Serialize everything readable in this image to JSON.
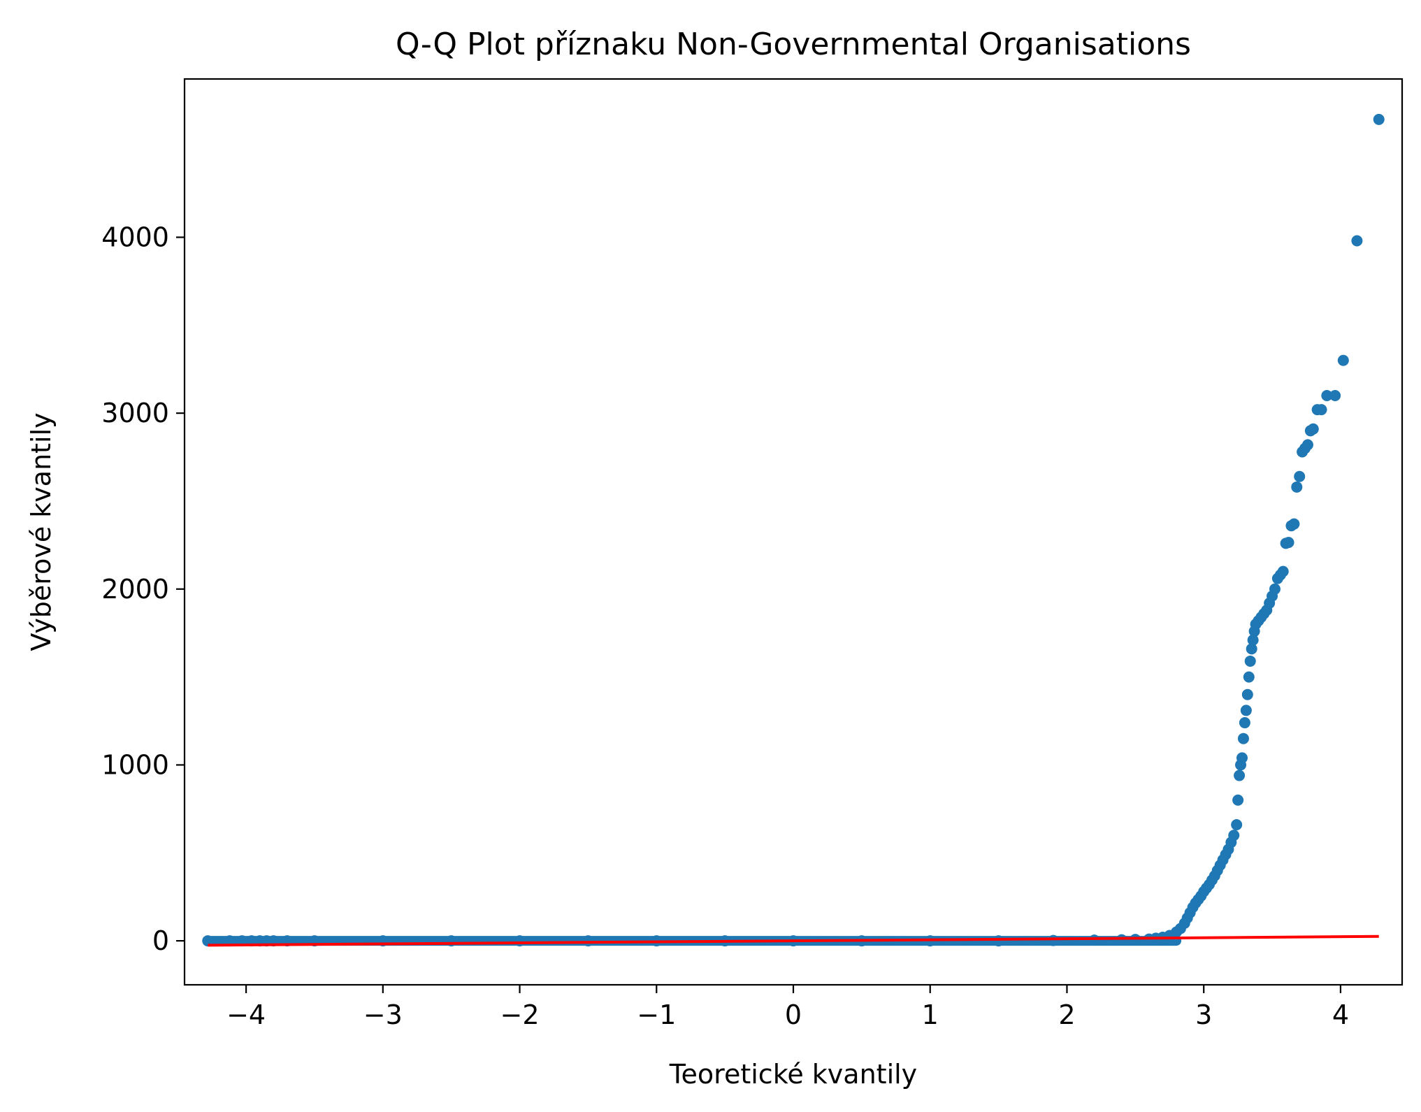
{
  "chart_data": {
    "type": "scatter",
    "title": "Q-Q Plot příznaku Non-Governmental Organisations",
    "xlabel": "Teoretické kvantily",
    "ylabel": "Výběrové kvantily",
    "xlim": [
      -4.45,
      4.45
    ],
    "ylim": [
      -250,
      4900
    ],
    "x_ticks": [
      -4,
      -3,
      -2,
      -1,
      0,
      1,
      2,
      3,
      4
    ],
    "x_tick_labels": [
      "−4",
      "−3",
      "−2",
      "−1",
      "0",
      "1",
      "2",
      "3",
      "4"
    ],
    "y_ticks": [
      0,
      1000,
      2000,
      3000,
      4000
    ],
    "y_tick_labels": [
      "0",
      "1000",
      "2000",
      "3000",
      "4000"
    ],
    "grid": false,
    "colors": {
      "points": "#1f77b4",
      "fit_line": "#ff0000"
    },
    "series": [
      {
        "kind": "points",
        "x": [
          -4.28,
          -4.12,
          -4.03,
          -3.96,
          -3.9,
          -3.85,
          -3.8,
          -3.7,
          -3.5,
          -3.0,
          -2.5,
          -2.0,
          -1.5,
          -1.0,
          -0.5,
          0.0,
          0.5,
          1.0,
          1.5,
          1.9,
          2.2,
          2.4,
          2.5,
          2.6,
          2.65,
          2.7,
          2.75,
          2.8,
          2.83,
          2.86,
          2.88,
          2.9,
          2.92,
          2.94,
          2.96,
          2.98,
          3.0,
          3.02,
          3.04,
          3.06,
          3.08,
          3.1,
          3.12,
          3.14,
          3.16,
          3.18,
          3.2,
          3.22,
          3.24,
          3.25,
          3.26,
          3.27,
          3.28,
          3.29,
          3.3,
          3.31,
          3.32,
          3.33,
          3.34,
          3.35,
          3.36,
          3.37,
          3.38,
          3.4,
          3.42,
          3.44,
          3.46,
          3.48,
          3.5,
          3.52,
          3.54,
          3.56,
          3.58,
          3.6,
          3.62,
          3.64,
          3.66,
          3.68,
          3.7,
          3.72,
          3.74,
          3.76,
          3.78,
          3.8,
          3.83,
          3.86,
          3.9,
          3.96,
          4.02,
          4.12,
          4.28
        ],
        "y": [
          0,
          0,
          0,
          0,
          0,
          0,
          0,
          0,
          0,
          0,
          0,
          0,
          0,
          0,
          0,
          0,
          0,
          0,
          0,
          2,
          4,
          6,
          8,
          10,
          15,
          20,
          30,
          50,
          70,
          100,
          130,
          160,
          190,
          215,
          235,
          255,
          280,
          300,
          320,
          345,
          370,
          400,
          430,
          460,
          490,
          520,
          560,
          600,
          660,
          800,
          940,
          1000,
          1040,
          1150,
          1240,
          1310,
          1400,
          1500,
          1590,
          1660,
          1710,
          1760,
          1800,
          1820,
          1840,
          1860,
          1880,
          1920,
          1960,
          2000,
          2060,
          2080,
          2100,
          2260,
          2265,
          2360,
          2370,
          2580,
          2640,
          2780,
          2800,
          2820,
          2900,
          2910,
          3020,
          3020,
          3100,
          3100,
          3300,
          3980,
          4670
        ]
      },
      {
        "kind": "line",
        "x": [
          -4.28,
          4.28
        ],
        "y": [
          -25,
          25
        ]
      }
    ]
  }
}
